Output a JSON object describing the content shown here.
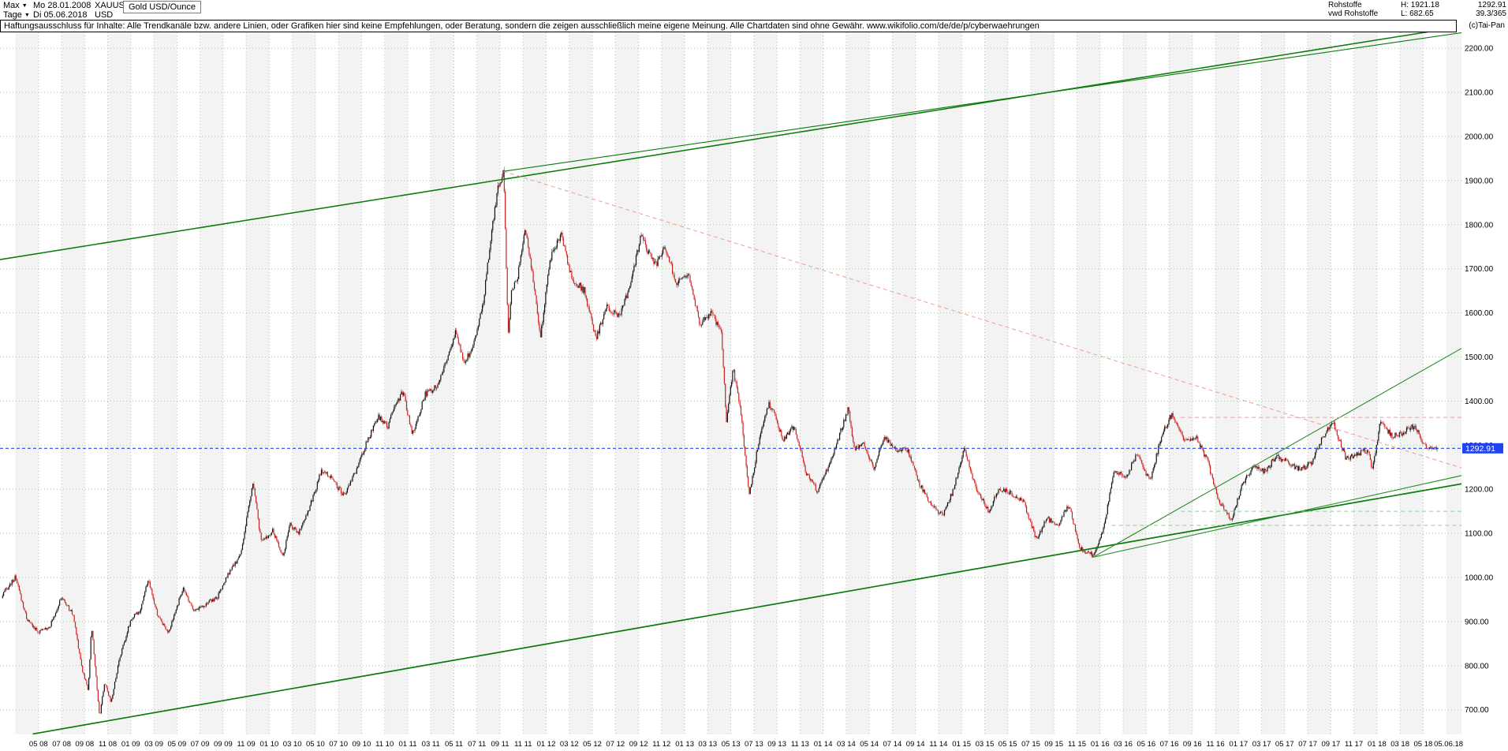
{
  "toolbar": {
    "range_label": "Max",
    "start_date": "Mo 28.01.2008",
    "symbol": "XAUUSD",
    "instrument": "Gold USD/Ounce",
    "timeframe_label": "Tage",
    "end_date": "Di 05.06.2018",
    "currency": "USD"
  },
  "quote_panel": {
    "group": "Rohstoffe",
    "feed": "vwd Rohstoffe",
    "high": "H: 1921.18",
    "low": "L: 682.65",
    "last": "1292.91",
    "ratio": "39.3/365",
    "copyright": "(c)Tai-Pan"
  },
  "disclaimer": "Haftungsausschluss für Inhalte: Alle Trendkanäle bzw. andere Linien, oder Grafiken hier sind keine Empfehlungen, oder Beratung, sondern die zeigen ausschließlich meine eigene Meinung. Alle Chartdaten sind ohne Gewähr.  www.wikifolio.com/de/de/p/cyberwaehrungen",
  "chart_data": {
    "type": "candlestick",
    "title": "Gold USD/Ounce",
    "symbol": "XAUUSD",
    "x_unit": "months since 2008-01",
    "xlim": [
      0.6,
      127.3
    ],
    "ylim": [
      646,
      2236
    ],
    "grid": true,
    "legend": "none",
    "high": 1921.18,
    "low": 682.65,
    "last_price": {
      "value": 1292.91,
      "label": "1292.91"
    },
    "y_axis": {
      "side": "right",
      "ticks": [
        {
          "value": 2200,
          "label": "2200.00"
        },
        {
          "value": 2100,
          "label": "2100.00"
        },
        {
          "value": 2000,
          "label": "2000.00"
        },
        {
          "value": 1900,
          "label": "1900.00"
        },
        {
          "value": 1800,
          "label": "1800.00"
        },
        {
          "value": 1700,
          "label": "1700.00"
        },
        {
          "value": 1600,
          "label": "1600.00"
        },
        {
          "value": 1500,
          "label": "1500.00"
        },
        {
          "value": 1400,
          "label": "1400.00"
        },
        {
          "value": 1300,
          "label": "1300.00"
        },
        {
          "value": 1200,
          "label": "1200.00"
        },
        {
          "value": 1100,
          "label": "1100.00"
        },
        {
          "value": 1000,
          "label": "1000.00"
        },
        {
          "value": 900,
          "label": "900.00"
        },
        {
          "value": 800,
          "label": "800.00"
        },
        {
          "value": 700,
          "label": "700.00"
        }
      ]
    },
    "x_axis": {
      "start_t": 4,
      "step": 2,
      "labels": [
        "05 08",
        "07 08",
        "09 08",
        "11 08",
        "01 09",
        "03 09",
        "05 09",
        "07 09",
        "09 09",
        "11 09",
        "01 10",
        "03 10",
        "05 10",
        "07 10",
        "09 10",
        "11 10",
        "01 11",
        "03 11",
        "05 11",
        "07 11",
        "09 11",
        "11 11",
        "01 12",
        "03 12",
        "05 12",
        "07 12",
        "09 12",
        "11 12",
        "01 13",
        "03 13",
        "05 13",
        "07 13",
        "09 13",
        "11 13",
        "01 14",
        "03 14",
        "05 14",
        "07 14",
        "09 14",
        "11 14",
        "01 15",
        "03 15",
        "05 15",
        "07 15",
        "09 15",
        "11 15",
        "01 16",
        "03 16",
        "05 16",
        "07 16",
        "09 16",
        "11 16",
        "01 17",
        "03 17",
        "05 17",
        "07 17",
        "09 17",
        "11 17",
        "01 18",
        "03 18",
        "05 18"
      ],
      "end_label": {
        "t": 126.2,
        "label": "05.06.18"
      }
    },
    "series": [
      {
        "name": "XAUUSD price path (monthly anchors, USD/oz)",
        "points": [
          [
            0,
            905
          ],
          [
            1,
            965
          ],
          [
            2,
            1000
          ],
          [
            3,
            905
          ],
          [
            4,
            875
          ],
          [
            5,
            890
          ],
          [
            6,
            955
          ],
          [
            7,
            915
          ],
          [
            7.8,
            790
          ],
          [
            8.3,
            745
          ],
          [
            8.6,
            890
          ],
          [
            9.3,
            682
          ],
          [
            9.7,
            760
          ],
          [
            10.3,
            718
          ],
          [
            11,
            815
          ],
          [
            12,
            905
          ],
          [
            12.8,
            925
          ],
          [
            13.5,
            995
          ],
          [
            14.3,
            915
          ],
          [
            15.3,
            875
          ],
          [
            16.5,
            975
          ],
          [
            17.5,
            925
          ],
          [
            18.5,
            940
          ],
          [
            19.5,
            955
          ],
          [
            20.5,
            1010
          ],
          [
            21.5,
            1050
          ],
          [
            22.6,
            1215
          ],
          [
            23.3,
            1080
          ],
          [
            24.3,
            1105
          ],
          [
            25.2,
            1048
          ],
          [
            25.8,
            1120
          ],
          [
            26.5,
            1100
          ],
          [
            27.5,
            1160
          ],
          [
            28.5,
            1240
          ],
          [
            29.3,
            1230
          ],
          [
            29.8,
            1210
          ],
          [
            30.5,
            1185
          ],
          [
            31.5,
            1240
          ],
          [
            32.5,
            1310
          ],
          [
            33.5,
            1365
          ],
          [
            34.3,
            1340
          ],
          [
            34.8,
            1390
          ],
          [
            35.6,
            1420
          ],
          [
            36.4,
            1325
          ],
          [
            37.5,
            1415
          ],
          [
            38.5,
            1435
          ],
          [
            39.5,
            1500
          ],
          [
            40.2,
            1560
          ],
          [
            40.8,
            1490
          ],
          [
            41.5,
            1510
          ],
          [
            42.5,
            1615
          ],
          [
            43.3,
            1790
          ],
          [
            43.8,
            1880
          ],
          [
            44.3,
            1921
          ],
          [
            44.7,
            1555
          ],
          [
            45,
            1650
          ],
          [
            45.5,
            1680
          ],
          [
            46.2,
            1790
          ],
          [
            46.8,
            1690
          ],
          [
            47.5,
            1545
          ],
          [
            48.3,
            1720
          ],
          [
            49.3,
            1780
          ],
          [
            50.2,
            1680
          ],
          [
            51.3,
            1650
          ],
          [
            52.3,
            1540
          ],
          [
            53.3,
            1615
          ],
          [
            54.3,
            1590
          ],
          [
            55.3,
            1660
          ],
          [
            56.2,
            1775
          ],
          [
            56.8,
            1740
          ],
          [
            57.5,
            1710
          ],
          [
            58.3,
            1750
          ],
          [
            59.3,
            1665
          ],
          [
            60.3,
            1690
          ],
          [
            61.3,
            1575
          ],
          [
            62.3,
            1600
          ],
          [
            63.2,
            1555
          ],
          [
            63.6,
            1355
          ],
          [
            64.2,
            1470
          ],
          [
            64.8,
            1390
          ],
          [
            65.6,
            1185
          ],
          [
            66.5,
            1320
          ],
          [
            67.3,
            1395
          ],
          [
            67.8,
            1370
          ],
          [
            68.5,
            1310
          ],
          [
            69.5,
            1345
          ],
          [
            70.5,
            1240
          ],
          [
            71.5,
            1195
          ],
          [
            72.5,
            1255
          ],
          [
            73.5,
            1330
          ],
          [
            74.2,
            1385
          ],
          [
            74.7,
            1290
          ],
          [
            75.5,
            1300
          ],
          [
            76.4,
            1245
          ],
          [
            77.3,
            1320
          ],
          [
            78.3,
            1290
          ],
          [
            79.3,
            1290
          ],
          [
            80.3,
            1215
          ],
          [
            81.3,
            1165
          ],
          [
            82.4,
            1140
          ],
          [
            83.3,
            1200
          ],
          [
            84.2,
            1290
          ],
          [
            85.3,
            1200
          ],
          [
            86.3,
            1150
          ],
          [
            87.3,
            1200
          ],
          [
            88.3,
            1190
          ],
          [
            89.4,
            1170
          ],
          [
            90.5,
            1085
          ],
          [
            91.4,
            1135
          ],
          [
            92.3,
            1115
          ],
          [
            93.3,
            1165
          ],
          [
            94.3,
            1065
          ],
          [
            95.4,
            1050
          ],
          [
            96.3,
            1110
          ],
          [
            97.2,
            1240
          ],
          [
            98.3,
            1230
          ],
          [
            99.3,
            1285
          ],
          [
            100.3,
            1215
          ],
          [
            101.3,
            1320
          ],
          [
            102.2,
            1370
          ],
          [
            103.3,
            1310
          ],
          [
            104.3,
            1320
          ],
          [
            105.3,
            1265
          ],
          [
            106.3,
            1175
          ],
          [
            107.4,
            1130
          ],
          [
            108.3,
            1210
          ],
          [
            109.3,
            1250
          ],
          [
            110.3,
            1240
          ],
          [
            111.3,
            1275
          ],
          [
            112.3,
            1260
          ],
          [
            113.3,
            1245
          ],
          [
            114.3,
            1260
          ],
          [
            115.3,
            1320
          ],
          [
            116.2,
            1350
          ],
          [
            117.3,
            1270
          ],
          [
            118.3,
            1280
          ],
          [
            119.2,
            1290
          ],
          [
            119.6,
            1245
          ],
          [
            120.3,
            1355
          ],
          [
            121.3,
            1320
          ],
          [
            122.3,
            1330
          ],
          [
            123.3,
            1345
          ],
          [
            124.3,
            1290
          ],
          [
            125.2,
            1292.91
          ]
        ]
      }
    ],
    "trend_lines": [
      {
        "name": "upper-channel-line",
        "color": "#0a7a0a",
        "width": 1.5,
        "points": [
          [
            0,
            1718
          ],
          [
            127.5,
            2250
          ]
        ]
      },
      {
        "name": "upper-channel-line-2",
        "color": "#0a7a0a",
        "width": 1.1,
        "points": [
          [
            44.3,
            1921
          ],
          [
            127.5,
            2236
          ]
        ]
      },
      {
        "name": "lower-channel-line",
        "color": "#0a7a0a",
        "width": 1.7,
        "points": [
          [
            3.5,
            645
          ],
          [
            127.5,
            1213
          ]
        ]
      },
      {
        "name": "support-line-steep",
        "color": "#2e8b2e",
        "width": 1.1,
        "points": [
          [
            95.4,
            1046
          ],
          [
            127.5,
            1522
          ]
        ]
      },
      {
        "name": "support-line-shallow",
        "color": "#2e8b2e",
        "width": 1.1,
        "points": [
          [
            95.4,
            1046
          ],
          [
            127.5,
            1232
          ]
        ]
      },
      {
        "name": "downtrend-from-2011-peak",
        "color": "#ef9a9a",
        "width": 1,
        "dash": "5 4",
        "points": [
          [
            44.3,
            1921
          ],
          [
            127.5,
            1247
          ]
        ]
      },
      {
        "name": "resistance-dashed-1363",
        "color": "#ef9a9a",
        "width": 1,
        "dash": "5 4",
        "points": [
          [
            103,
            1363
          ],
          [
            127.5,
            1363
          ]
        ]
      },
      {
        "name": "support-dashed-1150",
        "color": "#8fcf8f",
        "width": 1,
        "dash": "5 4",
        "points": [
          [
            103,
            1150
          ],
          [
            127.5,
            1150
          ]
        ]
      },
      {
        "name": "support-dashed-1118",
        "color": "#8fcf8f",
        "width": 1,
        "dash": "5 4",
        "points": [
          [
            97,
            1118
          ],
          [
            127.5,
            1118
          ]
        ]
      }
    ],
    "colors": {
      "up": "#111111",
      "down": "#cc2222",
      "trend_major": "#0a7a0a",
      "trend_minor": "#2e8b2e",
      "downtrend_dash": "#ef9a9a",
      "support_dash": "#8fcf8f",
      "grid": "#9bbf9b",
      "last_price": "#2244ee",
      "band": "#f3f3f3"
    }
  }
}
